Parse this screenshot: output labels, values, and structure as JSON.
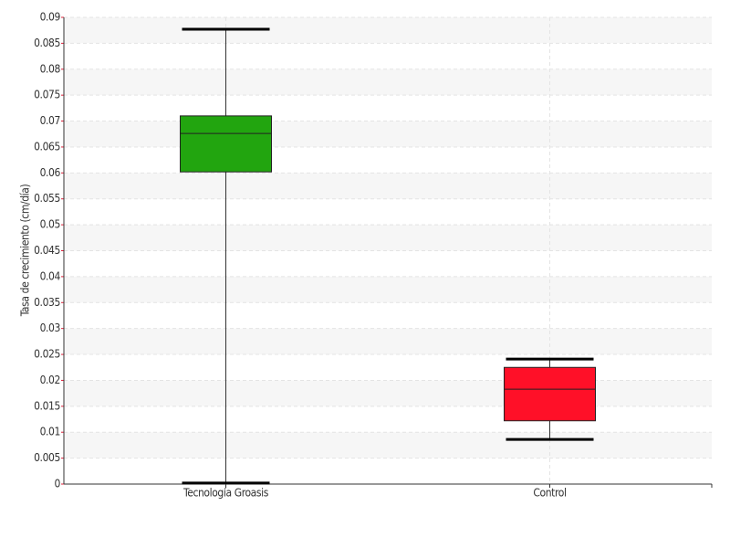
{
  "chart_data": {
    "type": "box",
    "y_label": "Tasa de crecimiento (cm/día)",
    "categories": [
      "Tecnología Groasis",
      "Control"
    ],
    "boxes": [
      {
        "min": 0.0002,
        "q1": 0.0602,
        "median": 0.0676,
        "q3": 0.071,
        "max": 0.0877,
        "color": "#22a50f"
      },
      {
        "min": 0.0086,
        "q1": 0.0122,
        "median": 0.0183,
        "q3": 0.0225,
        "max": 0.0241,
        "color": "#ff1028"
      }
    ],
    "ylim": [
      0,
      0.09
    ],
    "yticks": [
      0,
      0.005,
      0.01,
      0.015,
      0.02,
      0.025,
      0.03,
      0.035,
      0.04,
      0.045,
      0.05,
      0.055,
      0.06,
      0.065,
      0.07,
      0.075,
      0.08,
      0.085,
      0.09
    ],
    "grid": true
  }
}
